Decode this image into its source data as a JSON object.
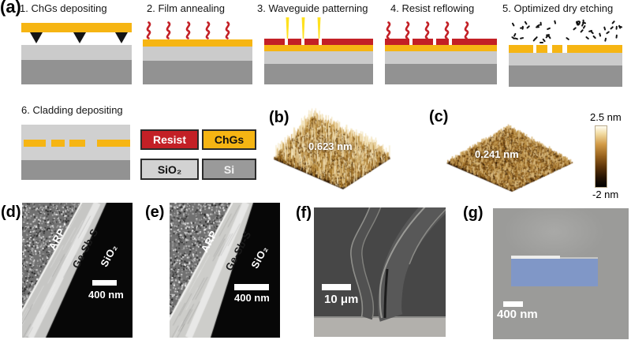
{
  "panel_a": {
    "label": "(a)",
    "steps": [
      {
        "title": "1. ChGs depositing"
      },
      {
        "title": "2. Film annealing"
      },
      {
        "title": "3. Waveguide patterning"
      },
      {
        "title": "4. Resist reflowing"
      },
      {
        "title": "5. Optimized dry etching"
      },
      {
        "title": "6. Cladding depositing"
      }
    ],
    "legend": {
      "resist": "Resist",
      "chgs": "ChGs",
      "sio2": "SiO₂",
      "si": "Si"
    }
  },
  "panel_b": {
    "label": "(b)",
    "roughness": "0.623 nm"
  },
  "panel_c": {
    "label": "(c)",
    "roughness": "0.241 nm"
  },
  "colorbar": {
    "max": "2.5 nm",
    "min": "-2 nm"
  },
  "panel_d": {
    "label": "(d)",
    "layer_arp": "ARP",
    "layer_film": "Ge-Sb-S",
    "layer_sub": "SiO₂",
    "scalebar": "400 nm"
  },
  "panel_e": {
    "label": "(e)",
    "layer_arp": "ARP",
    "layer_film": "Ge-Sb-S",
    "layer_sub": "SiO₂",
    "scalebar": "400 nm"
  },
  "panel_f": {
    "label": "(f)",
    "scalebar": "10 μm"
  },
  "panel_g": {
    "label": "(g)",
    "scalebar": "400 nm"
  },
  "colors": {
    "chgs_yellow": "#F6B513",
    "resist_red": "#C32026",
    "sio2_lightgray": "#CBCBCB",
    "si_darkgray": "#929292",
    "cladding_gray": "#D0D0D0",
    "beam_yellow": "#FFE11E",
    "waveguide_blue": "#8097C7"
  }
}
